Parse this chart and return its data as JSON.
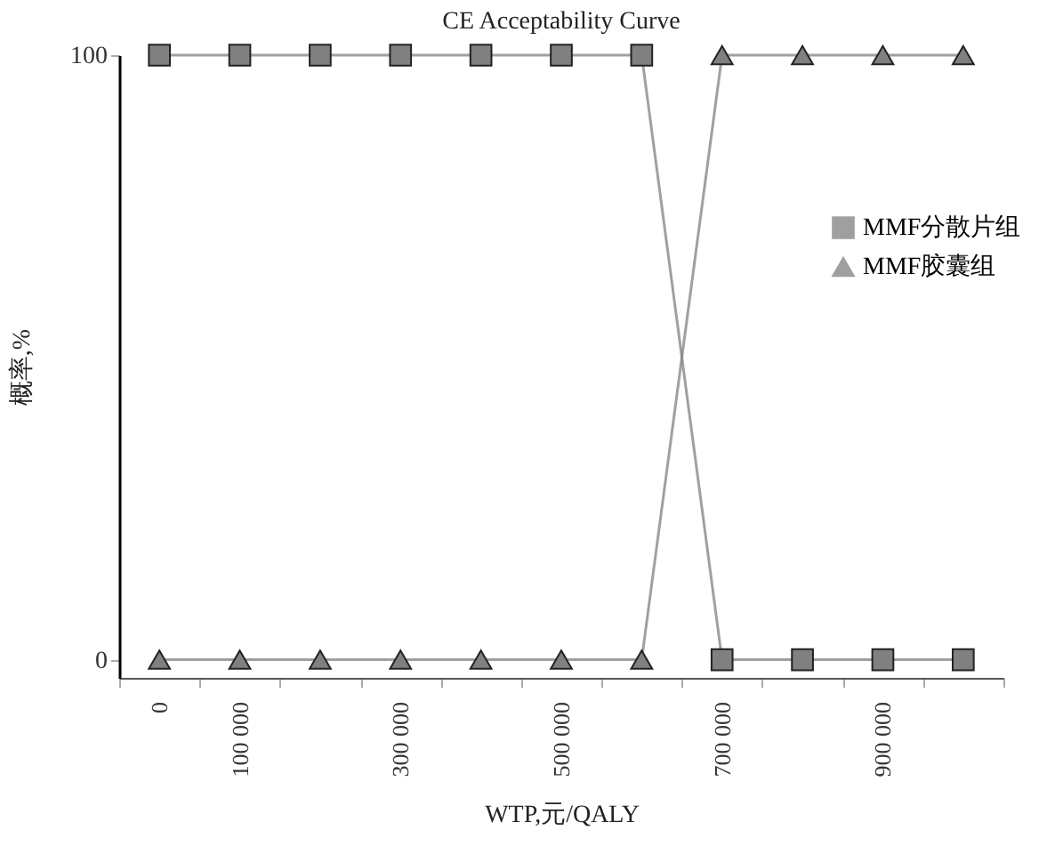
{
  "chart_data": {
    "type": "line",
    "title": "CE Acceptability Curve",
    "xlabel": "WTP,元/QALY",
    "ylabel": "概率,%",
    "categories": [
      "0",
      "100 000",
      null,
      "300 000",
      null,
      "500 000",
      null,
      "700 000",
      null,
      "900 000",
      null
    ],
    "series": [
      {
        "name": "MMF分散片组",
        "color": "#808080",
        "marker": "square",
        "values": [
          100,
          100,
          100,
          100,
          100,
          100,
          100,
          0,
          0,
          0,
          0
        ]
      },
      {
        "name": "MMF胶囊组",
        "color": "#808080",
        "marker": "triangle",
        "values": [
          0,
          0,
          0,
          0,
          0,
          0,
          0,
          100,
          100,
          100,
          100
        ]
      }
    ],
    "ylim": [
      -3,
      100
    ],
    "yticks": [
      0,
      100
    ],
    "grid": false,
    "legend": "right",
    "line_style": "solid"
  }
}
